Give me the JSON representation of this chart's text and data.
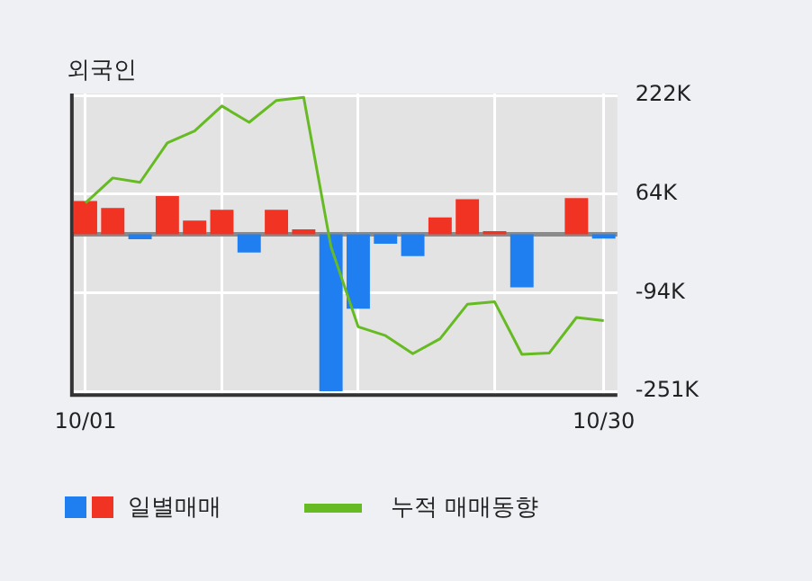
{
  "chart_data": {
    "type": "bar",
    "title": "외국인",
    "categories": [
      "10/01",
      null,
      null,
      null,
      null,
      null,
      null,
      null,
      null,
      null,
      null,
      null,
      null,
      null,
      null,
      null,
      null,
      null,
      null,
      "10/30"
    ],
    "series": [
      {
        "name": "일별매매",
        "colors": [
          "#f03322",
          "#f03322",
          "#1f7ff0",
          "#f03322",
          "#f03322",
          "#f03322",
          "#1f7ff0",
          "#f03322",
          "#f03322",
          "#1f7ff0",
          "#1f7ff0",
          "#1f7ff0",
          "#1f7ff0",
          "#f03322",
          "#f03322",
          "#f03322",
          "#1f7ff0",
          "#f03322",
          "#f03322",
          "#1f7ff0"
        ],
        "values": [
          53,
          42,
          -8,
          61,
          22,
          39,
          -29,
          39,
          8,
          -251,
          -119,
          -15,
          -35,
          27,
          56,
          5,
          -85,
          0,
          58,
          -7
        ]
      },
      {
        "type": "line",
        "name": "누적 매매동향",
        "color": "#66bb22",
        "values": [
          50,
          90,
          83,
          146,
          165,
          205,
          179,
          214,
          219,
          -20,
          -148,
          -162,
          -191,
          -167,
          -112,
          -108,
          -192,
          -190,
          -133,
          -138
        ]
      }
    ],
    "ylim": [
      -257,
      225
    ],
    "yticks": [
      {
        "value": 222,
        "label": "222K"
      },
      {
        "value": 64,
        "label": "64K"
      },
      {
        "value": -94,
        "label": "-94K"
      },
      {
        "value": -251,
        "label": "-251K"
      }
    ],
    "grid": true,
    "legend": "bottom"
  }
}
